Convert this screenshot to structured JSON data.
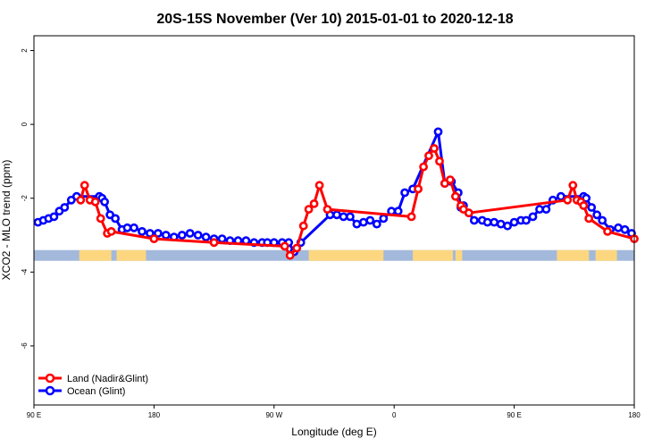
{
  "chart_data": {
    "type": "line",
    "title": "20S-15S November (Ver 10)   2015-01-01 to 2020-12-18",
    "xlabel": "Longitude (deg E)",
    "ylabel": "XCO2 - MLO trend (ppm)",
    "xlim": [
      90,
      540
    ],
    "ylim": [
      -7.6,
      2.4
    ],
    "x_ticks": [
      {
        "value": 90,
        "label": "90 E"
      },
      {
        "value": 180,
        "label": "180"
      },
      {
        "value": 270,
        "label": "90 W"
      },
      {
        "value": 360,
        "label": "0"
      },
      {
        "value": 450,
        "label": "90 E"
      },
      {
        "value": 540,
        "label": "180"
      }
    ],
    "y_ticks": [
      {
        "value": 2,
        "label": "2"
      },
      {
        "value": 0,
        "label": "0"
      },
      {
        "value": -2,
        "label": "-2"
      },
      {
        "value": -4,
        "label": "-4"
      },
      {
        "value": -6,
        "label": "-6"
      }
    ],
    "land_mask": {
      "y": -3.55,
      "ocean_color": "#a3b9dc",
      "land_color": "#fcd77f",
      "land_segments": [
        [
          124,
          148
        ],
        [
          152,
          158
        ],
        [
          156,
          174
        ],
        [
          296,
          352
        ],
        [
          374,
          404
        ],
        [
          406,
          411
        ],
        [
          482,
          506
        ],
        [
          511,
          527
        ]
      ]
    },
    "series": [
      {
        "name": "Land (Nadir&Glint)",
        "color": "#ff0000",
        "x": [
          125,
          128,
          132,
          136,
          140,
          145,
          148,
          180,
          225,
          278,
          282,
          287,
          292,
          296,
          300,
          304,
          310,
          373,
          378,
          382,
          386,
          390,
          394,
          398,
          402,
          406,
          410,
          412,
          416,
          490,
          494,
          497,
          500,
          502,
          506,
          520,
          540
        ],
        "values": [
          -2.05,
          -1.65,
          -2.05,
          -2.1,
          -2.55,
          -2.95,
          -2.9,
          -3.1,
          -3.2,
          -3.3,
          -3.55,
          -3.35,
          -2.75,
          -2.3,
          -2.15,
          -1.65,
          -2.3,
          -2.5,
          -1.75,
          -1.15,
          -0.85,
          -0.65,
          -1.0,
          -1.6,
          -1.5,
          -1.95,
          -2.2,
          -2.3,
          -2.4,
          -2.05,
          -1.65,
          -2.05,
          -2.1,
          -2.2,
          -2.55,
          -2.9,
          -3.1
        ]
      },
      {
        "name": "Ocean (Glint)",
        "color": "#0000ff",
        "x": [
          93,
          97,
          101,
          105,
          109,
          113,
          118,
          122,
          139,
          141,
          143,
          147,
          151,
          156,
          160,
          165,
          171,
          177,
          183,
          189,
          195,
          201,
          207,
          213,
          219,
          225,
          231,
          237,
          243,
          249,
          255,
          261,
          265,
          270,
          276,
          281,
          285,
          290,
          312,
          317,
          322,
          327,
          332,
          337,
          342,
          347,
          352,
          358,
          363,
          368,
          374,
          393,
          398,
          403,
          408,
          410,
          412,
          416,
          420,
          426,
          430,
          435,
          440,
          445,
          450,
          455,
          459,
          464,
          469,
          474,
          479,
          485,
          502,
          504,
          508,
          512,
          516,
          522,
          528,
          533,
          538
        ],
        "values": [
          -2.65,
          -2.6,
          -2.55,
          -2.5,
          -2.35,
          -2.25,
          -2.05,
          -1.95,
          -1.95,
          -2.0,
          -2.1,
          -2.45,
          -2.55,
          -2.85,
          -2.8,
          -2.8,
          -2.9,
          -2.95,
          -2.95,
          -3.0,
          -3.05,
          -3.0,
          -2.95,
          -3.0,
          -3.05,
          -3.1,
          -3.1,
          -3.15,
          -3.15,
          -3.15,
          -3.2,
          -3.2,
          -3.2,
          -3.2,
          -3.2,
          -3.2,
          -3.45,
          -3.2,
          -2.45,
          -2.45,
          -2.5,
          -2.5,
          -2.7,
          -2.65,
          -2.6,
          -2.7,
          -2.55,
          -2.35,
          -2.35,
          -1.85,
          -1.75,
          -0.2,
          -1.6,
          -1.55,
          -1.85,
          -2.25,
          -2.2,
          -2.4,
          -2.6,
          -2.6,
          -2.65,
          -2.65,
          -2.7,
          -2.75,
          -2.65,
          -2.6,
          -2.6,
          -2.5,
          -2.3,
          -2.3,
          -2.05,
          -1.95,
          -1.95,
          -2.0,
          -2.25,
          -2.45,
          -2.6,
          -2.85,
          -2.8,
          -2.85,
          -2.95
        ]
      }
    ],
    "legend_position": "bottom-left"
  }
}
